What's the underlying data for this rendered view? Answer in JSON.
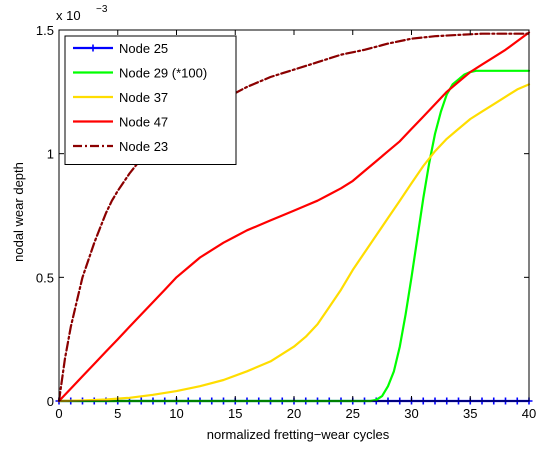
{
  "chart_data": {
    "type": "line",
    "xlabel": "normalized fretting−wear cycles",
    "ylabel": "nodal wear depth",
    "exponent_label": "x 10",
    "exponent_power": "−3",
    "xlim": [
      0,
      40
    ],
    "ylim": [
      0,
      1.5
    ],
    "x_ticks": [
      0,
      5,
      10,
      15,
      20,
      25,
      30,
      35,
      40
    ],
    "x_tick_labels": [
      "0",
      "5",
      "10",
      "15",
      "20",
      "25",
      "30",
      "35",
      "40"
    ],
    "y_ticks": [
      0,
      0.5,
      1,
      1.5
    ],
    "y_tick_labels": [
      "0",
      "0.5",
      "1",
      "1.5"
    ],
    "grid": false,
    "legend_position": "top-left",
    "series": [
      {
        "name": "Node 25",
        "color": "#0000ff",
        "line_style": "solid",
        "marker": "plus",
        "x": [
          0,
          1,
          2,
          3,
          4,
          5,
          6,
          7,
          8,
          9,
          10,
          11,
          12,
          13,
          14,
          15,
          16,
          17,
          18,
          19,
          20,
          21,
          22,
          23,
          24,
          25,
          26,
          27,
          28,
          29,
          30,
          31,
          32,
          33,
          34,
          35,
          36,
          37,
          38,
          39,
          40
        ],
        "y": [
          0,
          0,
          0,
          0,
          0,
          0,
          0,
          0,
          0,
          0,
          0,
          0,
          0,
          0,
          0,
          0,
          0,
          0,
          0,
          0,
          0,
          0,
          0,
          0,
          0,
          0,
          0,
          0,
          0,
          0,
          0,
          0,
          0,
          0,
          0,
          0,
          0,
          0,
          0,
          0,
          0
        ]
      },
      {
        "name": "Node 29 (*100)",
        "color": "#00ff00",
        "line_style": "solid",
        "x": [
          0,
          26.5,
          27,
          27.5,
          28,
          28.5,
          29,
          29.5,
          30,
          30.5,
          31,
          31.5,
          32,
          32.5,
          33,
          33.5,
          34,
          34.5,
          35,
          35.5,
          36,
          37,
          38,
          39,
          40
        ],
        "y": [
          0,
          0,
          0.005,
          0.02,
          0.06,
          0.12,
          0.22,
          0.35,
          0.5,
          0.66,
          0.82,
          0.96,
          1.08,
          1.17,
          1.24,
          1.28,
          1.3,
          1.32,
          1.33,
          1.335,
          1.335,
          1.335,
          1.335,
          1.335,
          1.335
        ]
      },
      {
        "name": "Node 37",
        "color": "#ffdd00",
        "line_style": "solid",
        "x": [
          0,
          2,
          4,
          6,
          8,
          10,
          12,
          14,
          16,
          18,
          20,
          21,
          22,
          23,
          24,
          25,
          26,
          27,
          28,
          29,
          30,
          31,
          32,
          33,
          34,
          35,
          36,
          37,
          38,
          39,
          40
        ],
        "y": [
          0,
          0.002,
          0.006,
          0.013,
          0.025,
          0.04,
          0.06,
          0.085,
          0.12,
          0.16,
          0.22,
          0.26,
          0.31,
          0.38,
          0.45,
          0.53,
          0.6,
          0.67,
          0.74,
          0.81,
          0.88,
          0.95,
          1.01,
          1.06,
          1.1,
          1.14,
          1.17,
          1.2,
          1.23,
          1.26,
          1.28
        ]
      },
      {
        "name": "Node 47",
        "color": "#ff0000",
        "line_style": "solid",
        "x": [
          0,
          1,
          2,
          3,
          4,
          5,
          6,
          7,
          8,
          9,
          10,
          11,
          12,
          13,
          14,
          15,
          16,
          17,
          18,
          19,
          20,
          21,
          22,
          23,
          24,
          25,
          26,
          27,
          28,
          29,
          30,
          31,
          32,
          33,
          34,
          35,
          36,
          37,
          38,
          39,
          40
        ],
        "y": [
          0,
          0.05,
          0.1,
          0.15,
          0.2,
          0.25,
          0.3,
          0.35,
          0.4,
          0.45,
          0.5,
          0.54,
          0.58,
          0.61,
          0.64,
          0.665,
          0.69,
          0.71,
          0.73,
          0.75,
          0.77,
          0.79,
          0.81,
          0.835,
          0.86,
          0.89,
          0.93,
          0.97,
          1.01,
          1.05,
          1.1,
          1.15,
          1.2,
          1.25,
          1.29,
          1.33,
          1.36,
          1.39,
          1.42,
          1.455,
          1.49
        ]
      },
      {
        "name": "Node 23",
        "color": "#8b0000",
        "line_style": "dashdot",
        "x": [
          0,
          0.5,
          1,
          1.5,
          2,
          2.5,
          3,
          3.5,
          4,
          4.5,
          5,
          6,
          7,
          8,
          9,
          10,
          12,
          14,
          16,
          18,
          20,
          22,
          24,
          26,
          28,
          30,
          32,
          34,
          36,
          38,
          40
        ],
        "y": [
          0,
          0.17,
          0.3,
          0.4,
          0.5,
          0.57,
          0.64,
          0.7,
          0.76,
          0.81,
          0.85,
          0.92,
          0.98,
          1.03,
          1.07,
          1.11,
          1.17,
          1.22,
          1.27,
          1.31,
          1.34,
          1.37,
          1.4,
          1.42,
          1.445,
          1.465,
          1.475,
          1.48,
          1.485,
          1.485,
          1.485
        ]
      }
    ]
  }
}
